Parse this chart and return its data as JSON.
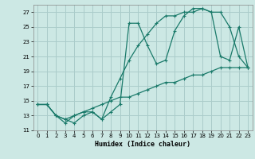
{
  "xlabel": "Humidex (Indice chaleur)",
  "xlim": [
    -0.5,
    23.5
  ],
  "ylim": [
    11,
    28
  ],
  "yticks": [
    11,
    13,
    15,
    17,
    19,
    21,
    23,
    25,
    27
  ],
  "xticks": [
    0,
    1,
    2,
    3,
    4,
    5,
    6,
    7,
    8,
    9,
    10,
    11,
    12,
    13,
    14,
    15,
    16,
    17,
    18,
    19,
    20,
    21,
    22,
    23
  ],
  "background_color": "#cce8e4",
  "grid_color": "#aaccca",
  "line_color": "#1a7a6a",
  "line1_x": [
    0,
    1,
    2,
    3,
    4,
    5,
    6,
    7,
    8,
    9,
    10,
    11,
    12,
    13,
    14,
    15,
    16,
    17,
    18,
    19,
    20,
    21,
    22,
    23
  ],
  "line1_y": [
    14.5,
    14.5,
    13.0,
    12.5,
    12.0,
    13.0,
    13.5,
    12.5,
    13.5,
    14.5,
    25.5,
    25.5,
    22.5,
    20.0,
    20.5,
    24.5,
    26.5,
    27.5,
    27.5,
    27.0,
    27.0,
    25.0,
    21.0,
    19.5
  ],
  "line2_x": [
    0,
    1,
    2,
    3,
    4,
    5,
    6,
    7,
    8,
    9,
    10,
    11,
    12,
    13,
    14,
    15,
    16,
    17,
    18,
    19,
    20,
    21,
    22,
    23
  ],
  "line2_y": [
    14.5,
    14.5,
    13.0,
    12.0,
    13.0,
    13.5,
    13.5,
    12.5,
    15.5,
    18.0,
    20.5,
    22.5,
    24.0,
    25.5,
    26.5,
    26.5,
    27.0,
    27.0,
    27.5,
    27.0,
    21.0,
    20.5,
    25.0,
    19.5
  ],
  "line3_x": [
    0,
    1,
    2,
    3,
    4,
    5,
    6,
    7,
    8,
    9,
    10,
    11,
    12,
    13,
    14,
    15,
    16,
    17,
    18,
    19,
    20,
    21,
    22,
    23
  ],
  "line3_y": [
    14.5,
    14.5,
    13.0,
    12.5,
    13.0,
    13.5,
    14.0,
    14.5,
    15.0,
    15.5,
    15.5,
    16.0,
    16.5,
    17.0,
    17.5,
    17.5,
    18.0,
    18.5,
    18.5,
    19.0,
    19.5,
    19.5,
    19.5,
    19.5
  ]
}
